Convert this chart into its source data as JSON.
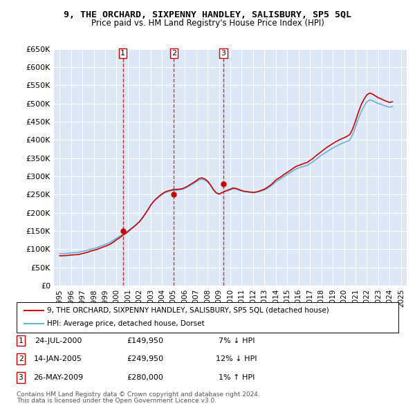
{
  "title": "9, THE ORCHARD, SIXPENNY HANDLEY, SALISBURY, SP5 5QL",
  "subtitle": "Price paid vs. HM Land Registry's House Price Index (HPI)",
  "legend_line1": "9, THE ORCHARD, SIXPENNY HANDLEY, SALISBURY, SP5 5QL (detached house)",
  "legend_line2": "HPI: Average price, detached house, Dorset",
  "footer1": "Contains HM Land Registry data © Crown copyright and database right 2024.",
  "footer2": "This data is licensed under the Open Government Licence v3.0.",
  "transactions": [
    {
      "num": 1,
      "date": "24-JUL-2000",
      "price": "£149,950",
      "change": "7% ↓ HPI",
      "year": 2000.56
    },
    {
      "num": 2,
      "date": "14-JAN-2005",
      "price": "£249,950",
      "change": "12% ↓ HPI",
      "year": 2005.04
    },
    {
      "num": 3,
      "date": "26-MAY-2009",
      "price": "£280,000",
      "change": "1% ↑ HPI",
      "year": 2009.4
    }
  ],
  "transaction_prices": [
    149950,
    249950,
    280000
  ],
  "hpi_years": [
    1995,
    1995.25,
    1995.5,
    1995.75,
    1996,
    1996.25,
    1996.5,
    1996.75,
    1997,
    1997.25,
    1997.5,
    1997.75,
    1998,
    1998.25,
    1998.5,
    1998.75,
    1999,
    1999.25,
    1999.5,
    1999.75,
    2000,
    2000.25,
    2000.5,
    2000.75,
    2001,
    2001.25,
    2001.5,
    2001.75,
    2002,
    2002.25,
    2002.5,
    2002.75,
    2003,
    2003.25,
    2003.5,
    2003.75,
    2004,
    2004.25,
    2004.5,
    2004.75,
    2005,
    2005.25,
    2005.5,
    2005.75,
    2006,
    2006.25,
    2006.5,
    2006.75,
    2007,
    2007.25,
    2007.5,
    2007.75,
    2008,
    2008.25,
    2008.5,
    2008.75,
    2009,
    2009.25,
    2009.5,
    2009.75,
    2010,
    2010.25,
    2010.5,
    2010.75,
    2011,
    2011.25,
    2011.5,
    2011.75,
    2012,
    2012.25,
    2012.5,
    2012.75,
    2013,
    2013.25,
    2013.5,
    2013.75,
    2014,
    2014.25,
    2014.5,
    2014.75,
    2015,
    2015.25,
    2015.5,
    2015.75,
    2016,
    2016.25,
    2016.5,
    2016.75,
    2017,
    2017.25,
    2017.5,
    2017.75,
    2018,
    2018.25,
    2018.5,
    2018.75,
    2019,
    2019.25,
    2019.5,
    2019.75,
    2020,
    2020.25,
    2020.5,
    2020.75,
    2021,
    2021.25,
    2021.5,
    2021.75,
    2022,
    2022.25,
    2022.5,
    2022.75,
    2023,
    2023.25,
    2023.5,
    2023.75,
    2024,
    2024.25
  ],
  "hpi_values": [
    88000,
    87500,
    88000,
    89000,
    90000,
    90500,
    91000,
    92000,
    94000,
    96000,
    98000,
    100000,
    102000,
    104000,
    107000,
    110000,
    113000,
    116000,
    120000,
    125000,
    130000,
    135000,
    140000,
    145000,
    150000,
    156000,
    162000,
    168000,
    175000,
    185000,
    196000,
    208000,
    220000,
    230000,
    238000,
    244000,
    250000,
    255000,
    258000,
    260000,
    262000,
    262000,
    263000,
    264000,
    267000,
    271000,
    276000,
    280000,
    285000,
    290000,
    292000,
    290000,
    285000,
    276000,
    265000,
    256000,
    252000,
    255000,
    258000,
    260000,
    263000,
    266000,
    265000,
    262000,
    260000,
    258000,
    257000,
    256000,
    255000,
    256000,
    258000,
    260000,
    263000,
    267000,
    272000,
    278000,
    285000,
    290000,
    295000,
    300000,
    305000,
    310000,
    315000,
    320000,
    323000,
    326000,
    328000,
    330000,
    335000,
    340000,
    346000,
    352000,
    358000,
    363000,
    368000,
    373000,
    378000,
    382000,
    386000,
    390000,
    393000,
    396000,
    400000,
    415000,
    435000,
    458000,
    478000,
    492000,
    505000,
    510000,
    508000,
    504000,
    500000,
    498000,
    495000,
    492000,
    490000,
    492000
  ],
  "price_years": [
    1995,
    1995.25,
    1995.5,
    1995.75,
    1996,
    1996.25,
    1996.5,
    1996.75,
    1997,
    1997.25,
    1997.5,
    1997.75,
    1998,
    1998.25,
    1998.5,
    1998.75,
    1999,
    1999.25,
    1999.5,
    1999.75,
    2000,
    2000.25,
    2000.5,
    2000.75,
    2001,
    2001.25,
    2001.5,
    2001.75,
    2002,
    2002.25,
    2002.5,
    2002.75,
    2003,
    2003.25,
    2003.5,
    2003.75,
    2004,
    2004.25,
    2004.5,
    2004.75,
    2005,
    2005.25,
    2005.5,
    2005.75,
    2006,
    2006.25,
    2006.5,
    2006.75,
    2007,
    2007.25,
    2007.5,
    2007.75,
    2008,
    2008.25,
    2008.5,
    2008.75,
    2009,
    2009.25,
    2009.5,
    2009.75,
    2010,
    2010.25,
    2010.5,
    2010.75,
    2011,
    2011.25,
    2011.5,
    2011.75,
    2012,
    2012.25,
    2012.5,
    2012.75,
    2013,
    2013.25,
    2013.5,
    2013.75,
    2014,
    2014.25,
    2014.5,
    2014.75,
    2015,
    2015.25,
    2015.5,
    2015.75,
    2016,
    2016.25,
    2016.5,
    2016.75,
    2017,
    2017.25,
    2017.5,
    2017.75,
    2018,
    2018.25,
    2018.5,
    2018.75,
    2019,
    2019.25,
    2019.5,
    2019.75,
    2020,
    2020.25,
    2020.5,
    2020.75,
    2021,
    2021.25,
    2021.5,
    2021.75,
    2022,
    2022.25,
    2022.5,
    2022.75,
    2023,
    2023.25,
    2023.5,
    2023.75,
    2024,
    2024.25
  ],
  "price_values": [
    82000,
    82000,
    82500,
    83000,
    84000,
    84500,
    85000,
    86000,
    88000,
    90000,
    92000,
    95000,
    97000,
    99000,
    102000,
    105000,
    108000,
    111000,
    115000,
    120000,
    126000,
    131000,
    137000,
    142000,
    148000,
    155000,
    161000,
    168000,
    175000,
    185000,
    196000,
    208000,
    221000,
    231000,
    239000,
    246000,
    252000,
    257000,
    260000,
    262000,
    264000,
    264000,
    265000,
    266000,
    269000,
    273000,
    278000,
    283000,
    288000,
    294000,
    296000,
    293000,
    287000,
    277000,
    264000,
    255000,
    251000,
    255000,
    259000,
    262000,
    265000,
    268000,
    267000,
    264000,
    261000,
    259000,
    258000,
    257000,
    256000,
    257000,
    259000,
    262000,
    265000,
    270000,
    275000,
    282000,
    290000,
    295000,
    300000,
    306000,
    311000,
    316000,
    322000,
    327000,
    330000,
    333000,
    336000,
    338000,
    344000,
    349000,
    356000,
    362000,
    368000,
    374000,
    380000,
    385000,
    390000,
    395000,
    399000,
    403000,
    406000,
    410000,
    415000,
    430000,
    452000,
    476000,
    497000,
    512000,
    524000,
    529000,
    526000,
    521000,
    516000,
    513000,
    509000,
    506000,
    503000,
    505000
  ],
  "ylim": [
    0,
    650000
  ],
  "xlim": [
    1994.5,
    2025.5
  ],
  "yticks": [
    0,
    50000,
    100000,
    150000,
    200000,
    250000,
    300000,
    350000,
    400000,
    450000,
    500000,
    550000,
    600000,
    650000
  ],
  "xticks": [
    1995,
    1996,
    1997,
    1998,
    1999,
    2000,
    2001,
    2002,
    2003,
    2004,
    2005,
    2006,
    2007,
    2008,
    2009,
    2010,
    2011,
    2012,
    2013,
    2014,
    2015,
    2016,
    2017,
    2018,
    2019,
    2020,
    2021,
    2022,
    2023,
    2024,
    2025
  ],
  "hpi_color": "#6baed6",
  "price_color": "#cc0000",
  "vline_color": "#cc0000",
  "bg_color": "#f0f4ff",
  "grid_color": "#ffffff",
  "plot_area_color": "#dce8f5"
}
